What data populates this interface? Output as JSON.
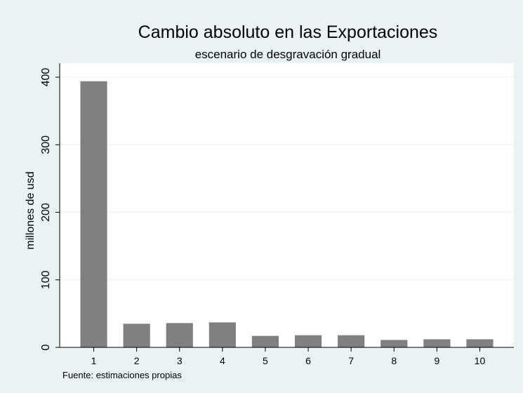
{
  "chart_data": {
    "type": "bar",
    "title": "Cambio absoluto en las Exportaciones",
    "subtitle": "escenario de desgravación gradual",
    "ylabel": "millones de usd",
    "xlabel": "",
    "note": "Fuente: estimaciones propias",
    "categories": [
      "1",
      "2",
      "3",
      "4",
      "5",
      "6",
      "7",
      "8",
      "9",
      "10"
    ],
    "values": [
      394,
      35,
      36,
      37,
      17,
      18,
      18,
      11,
      12,
      12
    ],
    "ylim": [
      0,
      400
    ],
    "yticks": [
      0,
      100,
      200,
      300,
      400
    ],
    "grid": true,
    "colors": {
      "bar": "#808080",
      "plot_background": "#ffffff",
      "outer_background": "#eaf2f3",
      "grid": "#eaf2f3",
      "axis": "#000000"
    }
  }
}
